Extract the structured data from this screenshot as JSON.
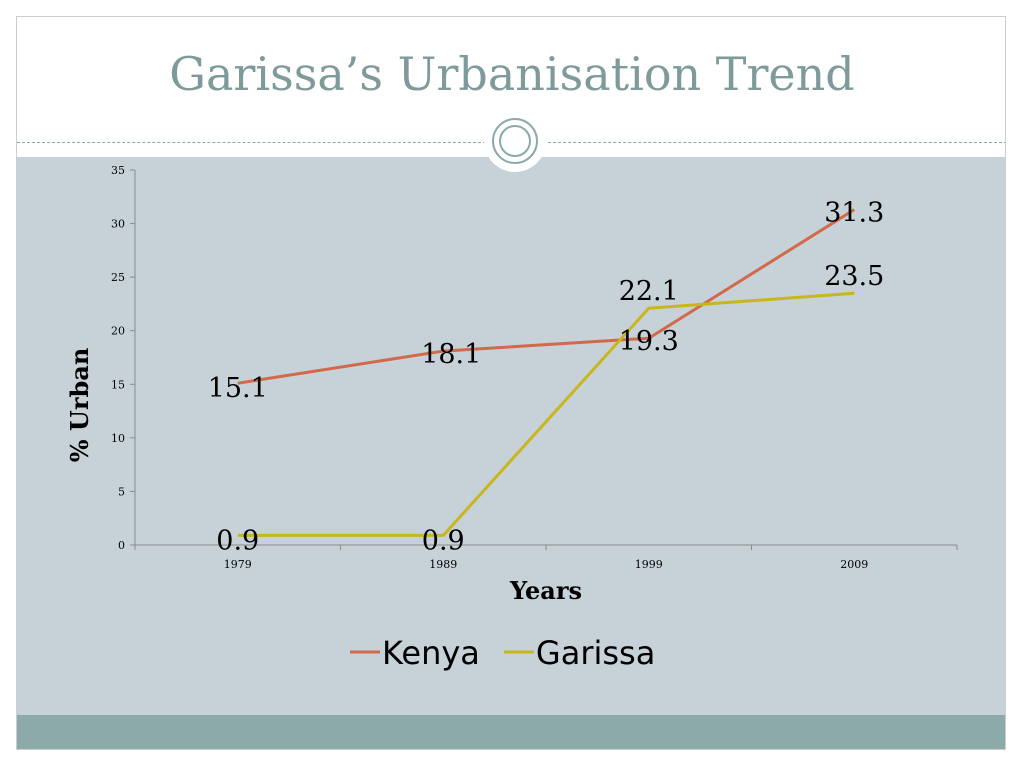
{
  "slide": {
    "title": "Garissa’s Urbanisation Trend"
  },
  "colors": {
    "title": "#7e9a9a",
    "content_bg": "#c6d1d8",
    "footer_bg": "#8caaaa",
    "kenya": "#d2694a",
    "garissa": "#c9b61c"
  },
  "chart_data": {
    "type": "line",
    "title": "",
    "xlabel": "Years",
    "ylabel": "% Urban",
    "categories": [
      "1979",
      "1989",
      "1999",
      "2009"
    ],
    "ylim": [
      0,
      35
    ],
    "yticks": [
      0,
      5,
      10,
      15,
      20,
      25,
      30,
      35
    ],
    "grid": false,
    "legend": "bottom",
    "series": [
      {
        "name": "Kenya",
        "color": "#d2694a",
        "values": [
          15.1,
          18.1,
          19.3,
          31.3
        ],
        "labels": [
          "15.1",
          "18.1",
          "19.3",
          "31.3"
        ]
      },
      {
        "name": "Garissa",
        "color": "#c9b61c",
        "values": [
          0.9,
          0.9,
          22.1,
          23.5
        ],
        "labels": [
          "0.9",
          "0.9",
          "22.1",
          "23.5"
        ]
      }
    ]
  }
}
